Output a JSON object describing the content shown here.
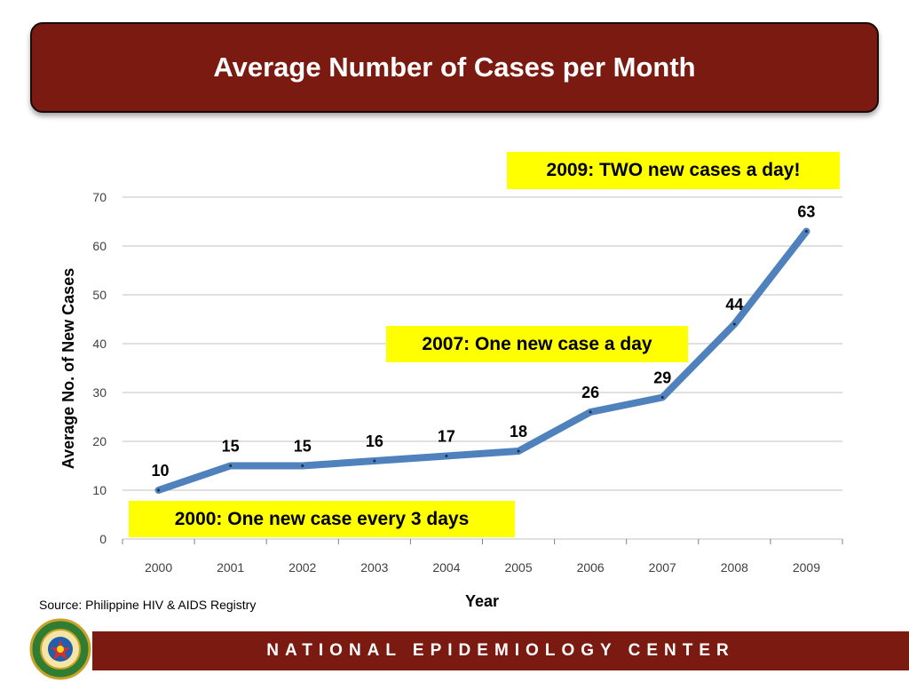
{
  "title": "Average Number of Cases per Month",
  "source": "Source: Philippine HIV & AIDS Registry",
  "footer": "NATIONAL EPIDEMIOLOGY CENTER",
  "callouts": {
    "top": "2009: TWO new cases a day!",
    "middle": "2007: One new case a day",
    "bottom": "2000: One new case every 3 days"
  },
  "colors": {
    "banner": "#7b1a10",
    "line": "#4f81bd",
    "callout": "#ffff00",
    "grid": "#c0c0c0"
  },
  "logo": {
    "name": "department-of-health-seal-icon",
    "text": "REPUBLIC OF THE PHILIPPINES DEPARTMENT OF HEALTH"
  },
  "chart_data": {
    "type": "line",
    "title": "Average Number of Cases per Month",
    "xlabel": "Year",
    "ylabel": "Average No. of New Cases",
    "categories": [
      "2000",
      "2001",
      "2002",
      "2003",
      "2004",
      "2005",
      "2006",
      "2007",
      "2008",
      "2009"
    ],
    "values": [
      10,
      15,
      15,
      16,
      17,
      18,
      26,
      29,
      44,
      63
    ],
    "ylim": [
      0,
      70
    ],
    "yticks": [
      0,
      10,
      20,
      30,
      40,
      50,
      60,
      70
    ],
    "grid": true,
    "legend": "none"
  }
}
